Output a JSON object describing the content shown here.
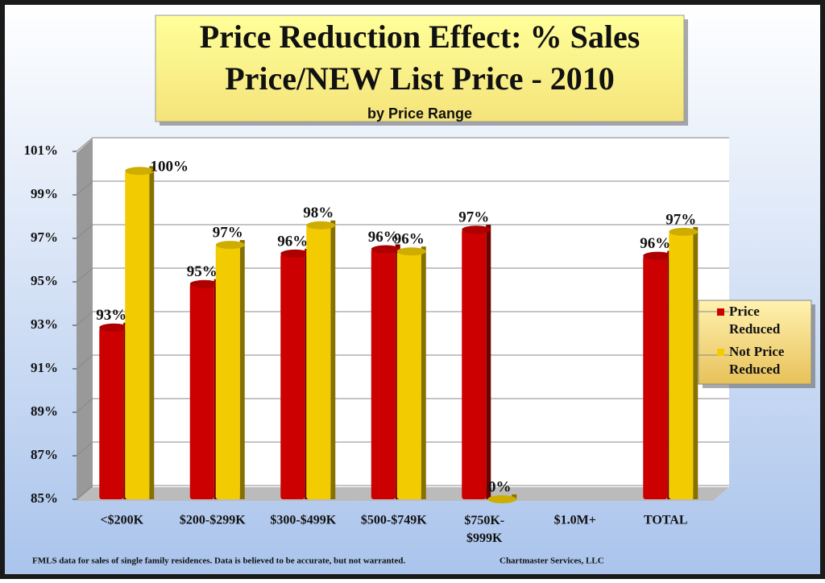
{
  "chart_data": {
    "type": "bar",
    "title": [
      "Price Reduction Effect: % Sales",
      "Price/NEW List Price - 2010"
    ],
    "subtitle": "by Price Range",
    "categories": [
      "<$200K",
      "$200-$299K",
      "$300-$499K",
      "$500-$749K",
      "$750K-\n$999K",
      "$1.0M+",
      "TOTAL"
    ],
    "series": [
      {
        "name": "Price Reduced",
        "color": "#cc0000",
        "values": [
          92.9,
          94.9,
          96.3,
          96.5,
          97.4,
          null,
          96.2
        ],
        "value_labels": [
          "93%",
          "95%",
          "96%",
          "96%",
          "97%",
          null,
          "96%"
        ]
      },
      {
        "name": "Not Price Reduced",
        "color": "#f2cc00",
        "values": [
          100.1,
          96.7,
          97.6,
          96.4,
          0,
          null,
          97.3
        ],
        "value_labels": [
          "100%",
          "97%",
          "98%",
          "96%",
          "0%",
          null,
          "97%"
        ]
      }
    ],
    "ylim": [
      85,
      101
    ],
    "yticks": [
      {
        "value": 85,
        "label": "85%"
      },
      {
        "value": 87,
        "label": "87%"
      },
      {
        "value": 89,
        "label": "89%"
      },
      {
        "value": 91,
        "label": "91%"
      },
      {
        "value": 93,
        "label": "93%"
      },
      {
        "value": 95,
        "label": "95%"
      },
      {
        "value": 97,
        "label": "97%"
      },
      {
        "value": 99,
        "label": "99%"
      },
      {
        "value": 101,
        "label": "101%"
      }
    ],
    "grid": true,
    "legend": "right",
    "footnote": "FMLS data for sales of single family residences.  Data is believed to be accurate, but not warranted.",
    "source": "Chartmaster Services, LLC"
  }
}
